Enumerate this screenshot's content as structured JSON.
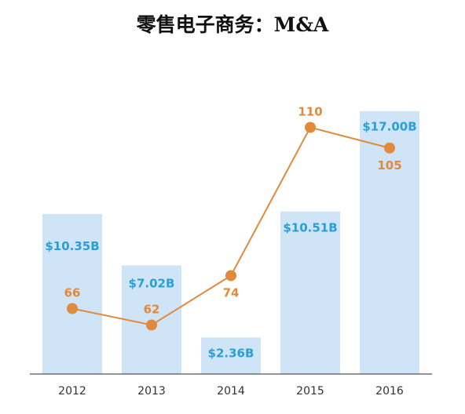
{
  "chart_data": {
    "type": "bar",
    "title": "零售电子商务：M&A",
    "categories": [
      "2012",
      "2013",
      "2014",
      "2015",
      "2016"
    ],
    "series": [
      {
        "type": "bar",
        "values": [
          10.35,
          7.02,
          2.36,
          10.51,
          17.0
        ],
        "labels": [
          "$10.35B",
          "$7.02B",
          "$2.36B",
          "$10.51B",
          "$17.00B"
        ]
      },
      {
        "type": "line",
        "values": [
          66,
          62,
          74,
          110,
          105
        ],
        "labels": [
          "66",
          "62",
          "74",
          "110",
          "105"
        ]
      }
    ],
    "xlabel": "",
    "ylabel": "",
    "ylim_bar": [
      0,
      18
    ],
    "ylim_line": [
      40,
      120
    ],
    "grid": false,
    "legend": "none",
    "colors": {
      "bar": "#cfe4f6",
      "bar_label": "#2a9fd6",
      "line": "#e08a3c",
      "line_label": "#e08a3c",
      "axis": "#555555"
    }
  }
}
